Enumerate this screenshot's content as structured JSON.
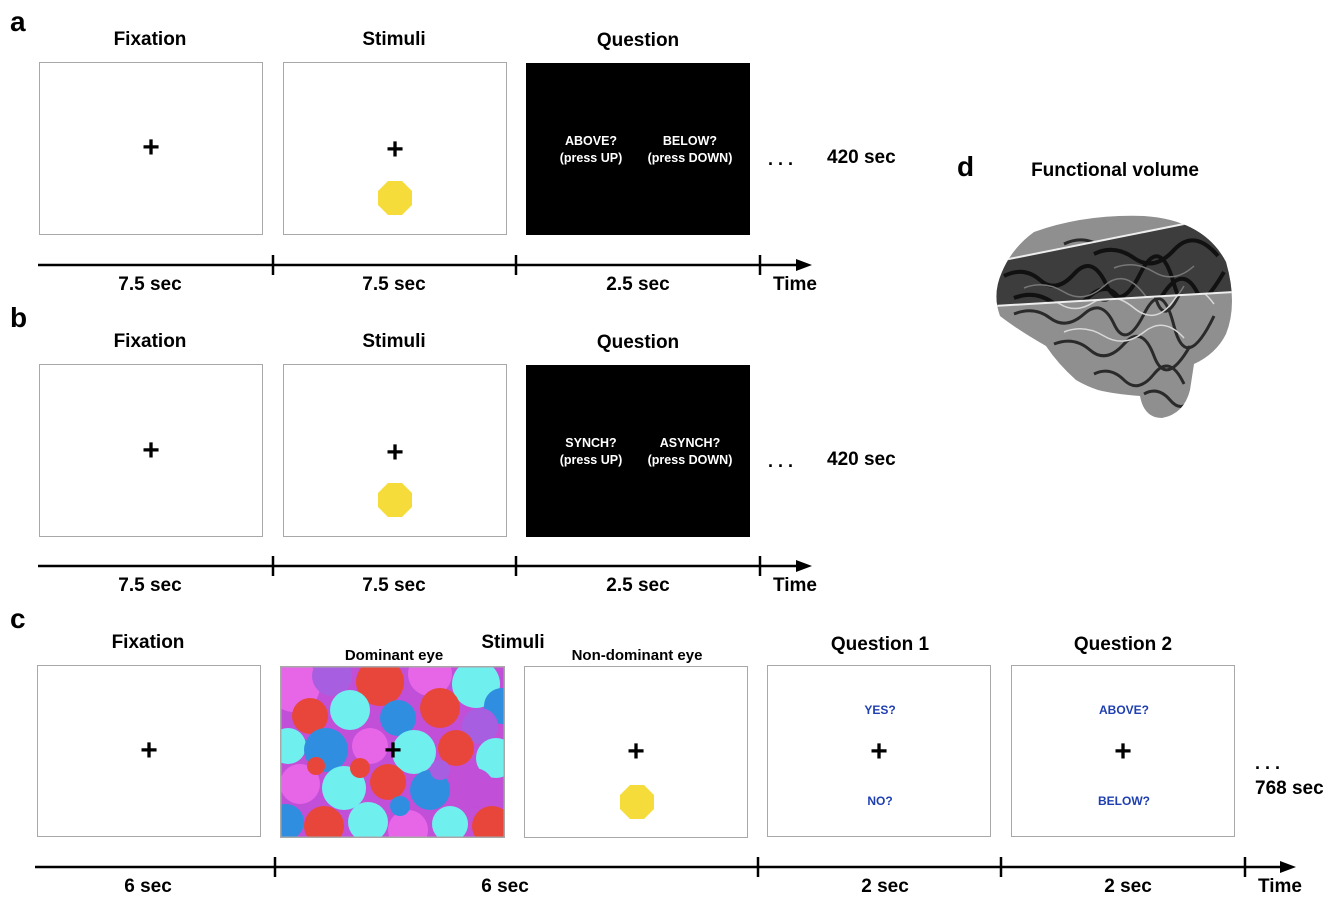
{
  "panel_a": {
    "label": "a",
    "headers": [
      "Fixation",
      "Stimuli",
      "Question"
    ],
    "question_left": [
      "ABOVE?",
      "(press UP)"
    ],
    "question_right": [
      "BELOW?",
      "(press DOWN)"
    ],
    "ellipsis": ". . .",
    "total": "420 sec",
    "durations": [
      "7.5 sec",
      "7.5 sec",
      "2.5 sec"
    ],
    "time_label": "Time"
  },
  "panel_b": {
    "label": "b",
    "headers": [
      "Fixation",
      "Stimuli",
      "Question"
    ],
    "question_left": [
      "SYNCH?",
      "(press UP)"
    ],
    "question_right": [
      "ASYNCH?",
      "(press DOWN)"
    ],
    "ellipsis": ". . .",
    "total": "420 sec",
    "durations": [
      "7.5 sec",
      "7.5 sec",
      "2.5 sec"
    ],
    "time_label": "Time"
  },
  "panel_c": {
    "label": "c",
    "fixation_header": "Fixation",
    "stimuli_header": "Stimuli",
    "dominant_eye": "Dominant eye",
    "non_dominant_eye": "Non-dominant eye",
    "question1_header": "Question 1",
    "question2_header": "Question 2",
    "q1_top": "YES?",
    "q1_bottom": "NO?",
    "q2_top": "ABOVE?",
    "q2_bottom": "BELOW?",
    "ellipsis": ". . .",
    "total": "768 sec",
    "durations": [
      "6 sec",
      "6 sec",
      "2 sec",
      "2 sec"
    ],
    "time_label": "Time"
  },
  "panel_d": {
    "label": "d",
    "title": "Functional volume"
  },
  "cross_symbol": "+",
  "colors": {
    "frame_border": "#a8a8a8",
    "stimulus_dot": "#f5dc3a",
    "question_background": "#000000",
    "question_text_blue": "#1f3fb0",
    "mondrian": [
      "#e8463a",
      "#c24fd8",
      "#e766e8",
      "#6ff0ef",
      "#2f8ee0",
      "#a85ee0"
    ]
  }
}
